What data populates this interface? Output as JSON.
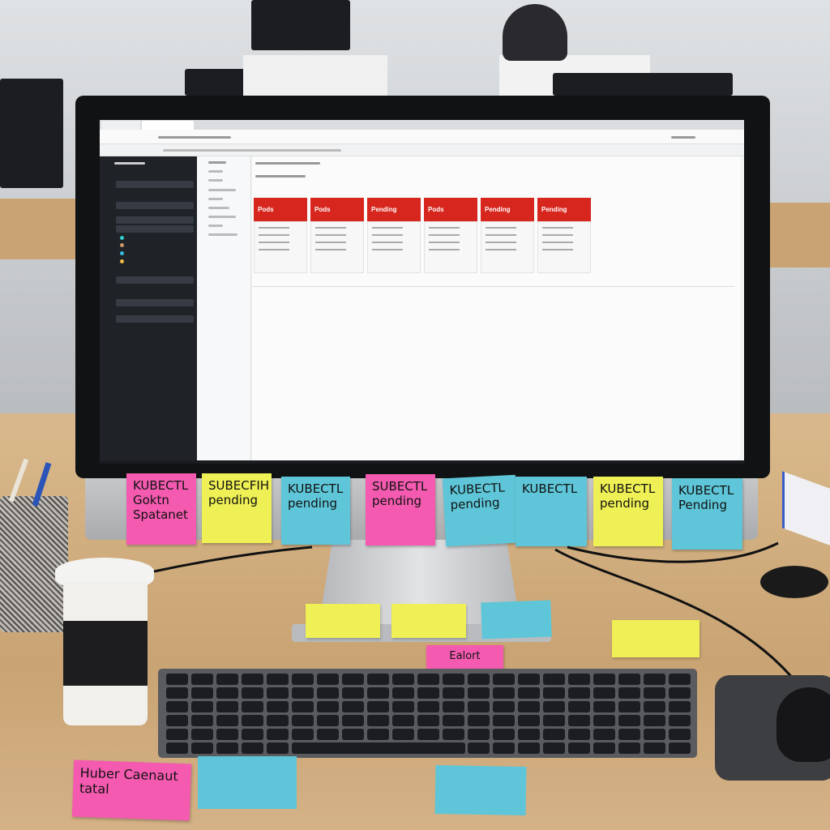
{
  "screen": {
    "cards": [
      {
        "status": "Pods"
      },
      {
        "status": "Pods"
      },
      {
        "status": "Pending"
      },
      {
        "status": "Pods"
      },
      {
        "status": "Pending"
      },
      {
        "status": "Pending"
      }
    ],
    "status_color": "#d7261e"
  },
  "monitor_notes": [
    {
      "text": "KUBECTL Goktn Spatanet",
      "color": "#f45bb0"
    },
    {
      "text": "SUBECFIH pending",
      "color": "#eef055"
    },
    {
      "text": "KUBECTL pending",
      "color": "#5ec6d8"
    },
    {
      "text": "SUBECTL pending",
      "color": "#f45bb0"
    },
    {
      "text": "KUBECTL pending",
      "color": "#5ec6d8"
    },
    {
      "text": "KUBECTL",
      "color": "#5ec6d8"
    },
    {
      "text": "KUBECTL pending",
      "color": "#eef055"
    },
    {
      "text": "KUBECTL Pending",
      "color": "#5ec6d8"
    }
  ],
  "desk_notes": [
    {
      "text": "Ealort",
      "color": "#f45bb0"
    },
    {
      "text": "Huber Caenaut tatal",
      "color": "#f45bb0"
    }
  ]
}
